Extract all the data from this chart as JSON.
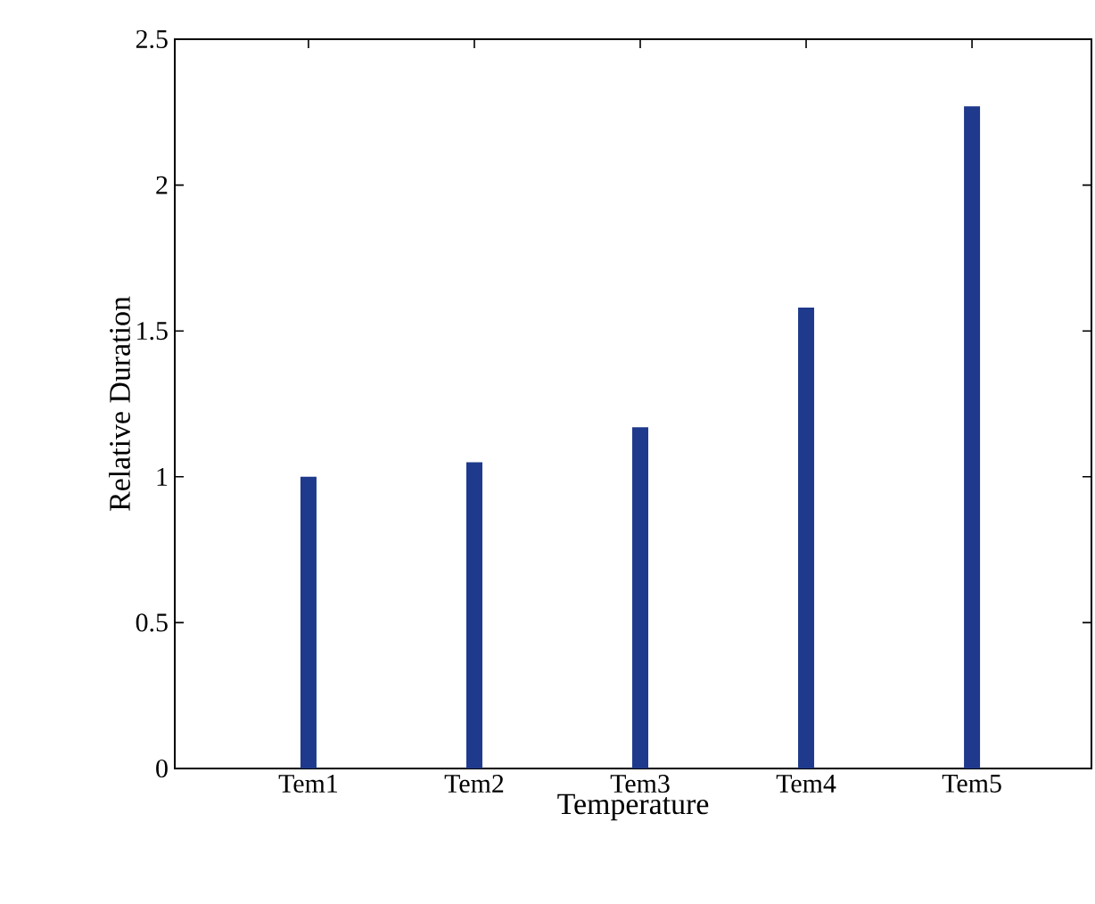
{
  "chart_data": {
    "type": "bar",
    "categories": [
      "Tem1",
      "Tem2",
      "Tem3",
      "Tem4",
      "Tem5"
    ],
    "values": [
      1.0,
      1.05,
      1.17,
      1.58,
      2.27
    ],
    "color": "#1f3a8c",
    "xlabel": "Temperature",
    "ylabel": "Relative Duration",
    "ylim": [
      0,
      2.5
    ],
    "yticks": [
      0,
      0.5,
      1,
      1.5,
      2,
      2.5
    ]
  }
}
